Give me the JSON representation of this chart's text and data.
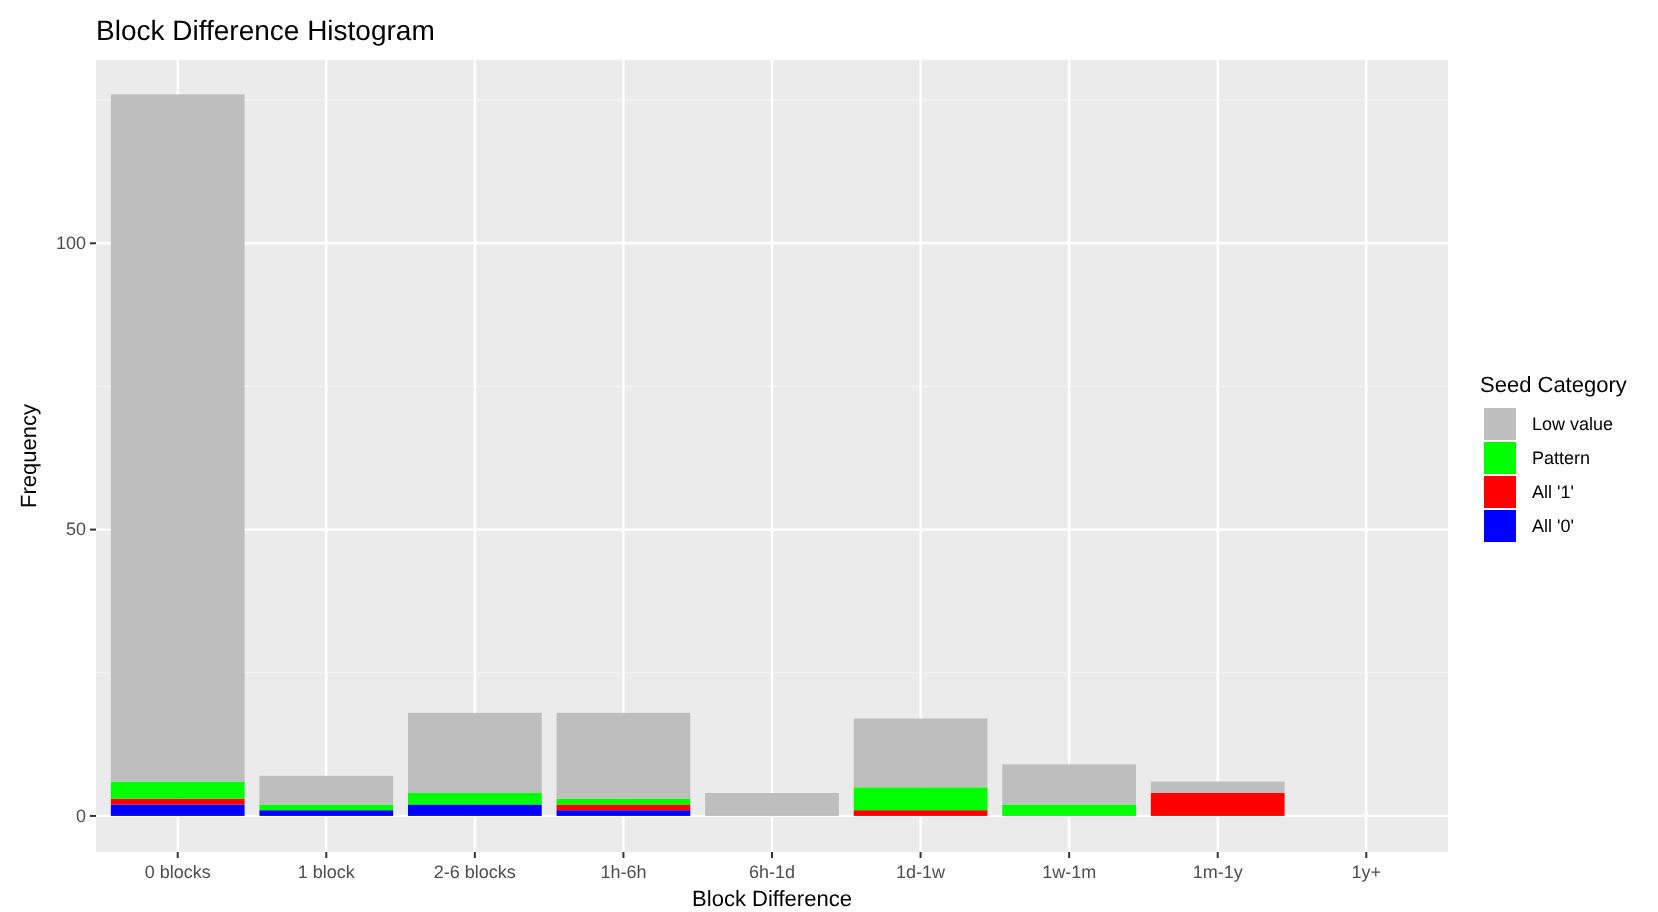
{
  "chart_data": {
    "type": "bar",
    "title": "Block Difference Histogram",
    "xlabel": "Block Difference",
    "ylabel": "Frequency",
    "legend_title": "Seed Category",
    "stacked": true,
    "categories": [
      "0 blocks",
      "1 block",
      "2-6 blocks",
      "1h-6h",
      "6h-1d",
      "1d-1w",
      "1w-1m",
      "1m-1y",
      "1y+"
    ],
    "series": [
      {
        "name": "All '0'",
        "color": "#0000ff",
        "values": [
          2,
          1,
          2,
          1,
          0,
          0,
          0,
          0,
          0
        ]
      },
      {
        "name": "All '1'",
        "color": "#ff0000",
        "values": [
          1,
          0,
          0,
          1,
          0,
          1,
          0,
          4,
          0
        ]
      },
      {
        "name": "Pattern",
        "color": "#00ff00",
        "values": [
          3,
          1,
          2,
          1,
          0,
          4,
          2,
          0,
          0
        ]
      },
      {
        "name": "Low value",
        "color": "#bebebe",
        "values": [
          120,
          5,
          14,
          15,
          4,
          12,
          7,
          2,
          0
        ]
      }
    ],
    "ylim": [
      -6.3,
      132
    ],
    "yticks": [
      0,
      50,
      100
    ],
    "grid": true,
    "legend": "right"
  }
}
